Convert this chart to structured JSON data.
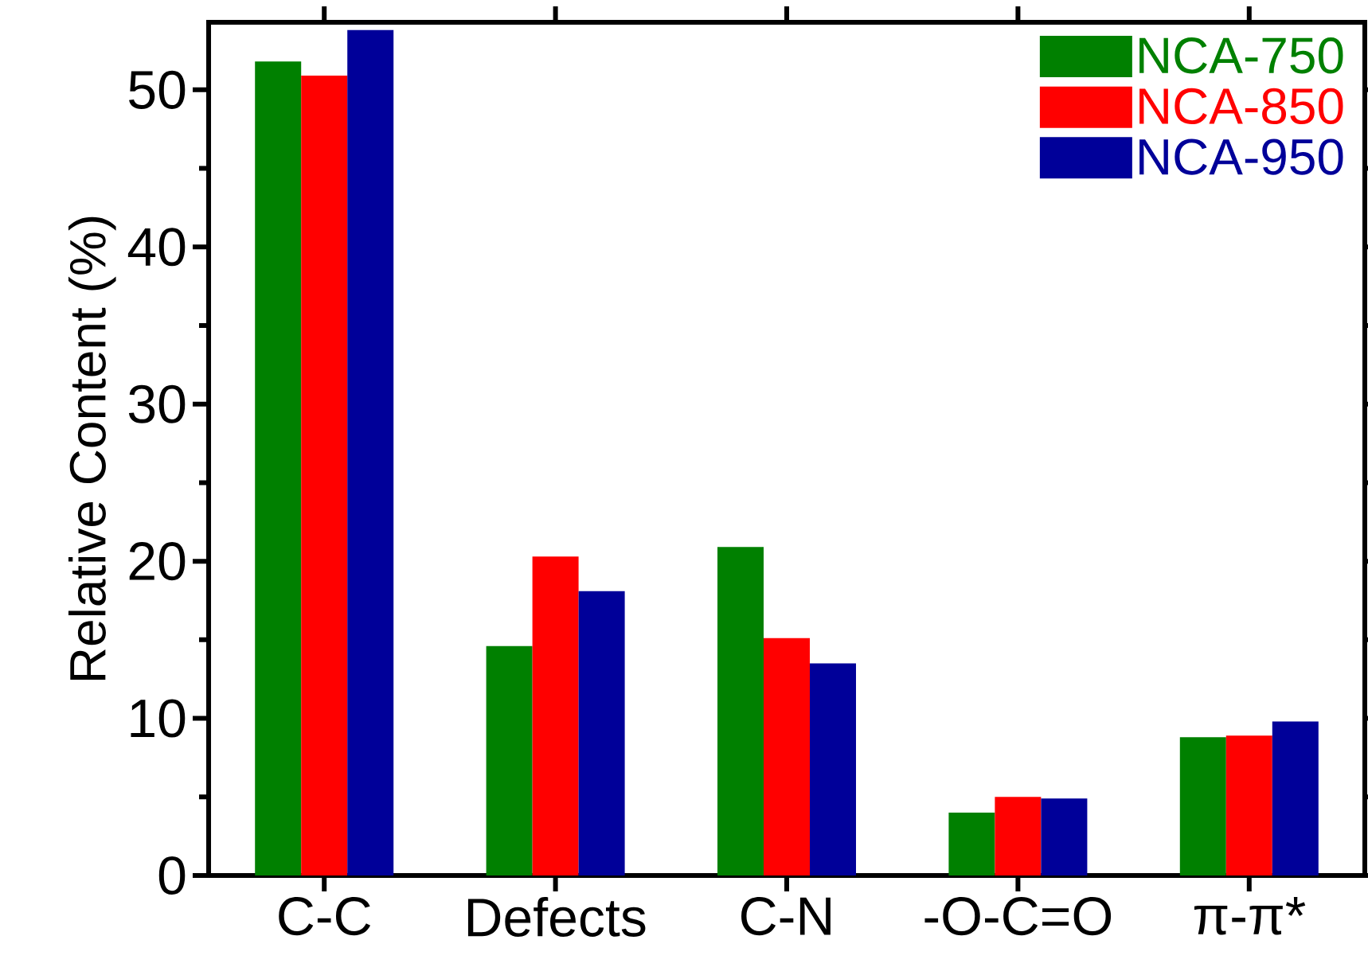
{
  "chart_data": {
    "type": "bar",
    "ylabel": "Relative Content (%)",
    "categories": [
      "C-C",
      "Defects",
      "C-N",
      "-O-C=O",
      "π-π*"
    ],
    "series": [
      {
        "name": "NCA-750",
        "color": "#008000",
        "values": [
          51.8,
          14.6,
          20.9,
          4.0,
          8.8
        ]
      },
      {
        "name": "NCA-850",
        "color": "#ff0000",
        "values": [
          50.9,
          20.3,
          15.1,
          5.0,
          8.9
        ]
      },
      {
        "name": "NCA-950",
        "color": "#000099",
        "values": [
          53.8,
          18.1,
          13.5,
          4.9,
          9.8
        ]
      }
    ],
    "ylim": [
      0,
      54.3
    ],
    "yticks": [
      0,
      10,
      20,
      30,
      40,
      50
    ],
    "grid": false,
    "legend": "top right"
  }
}
